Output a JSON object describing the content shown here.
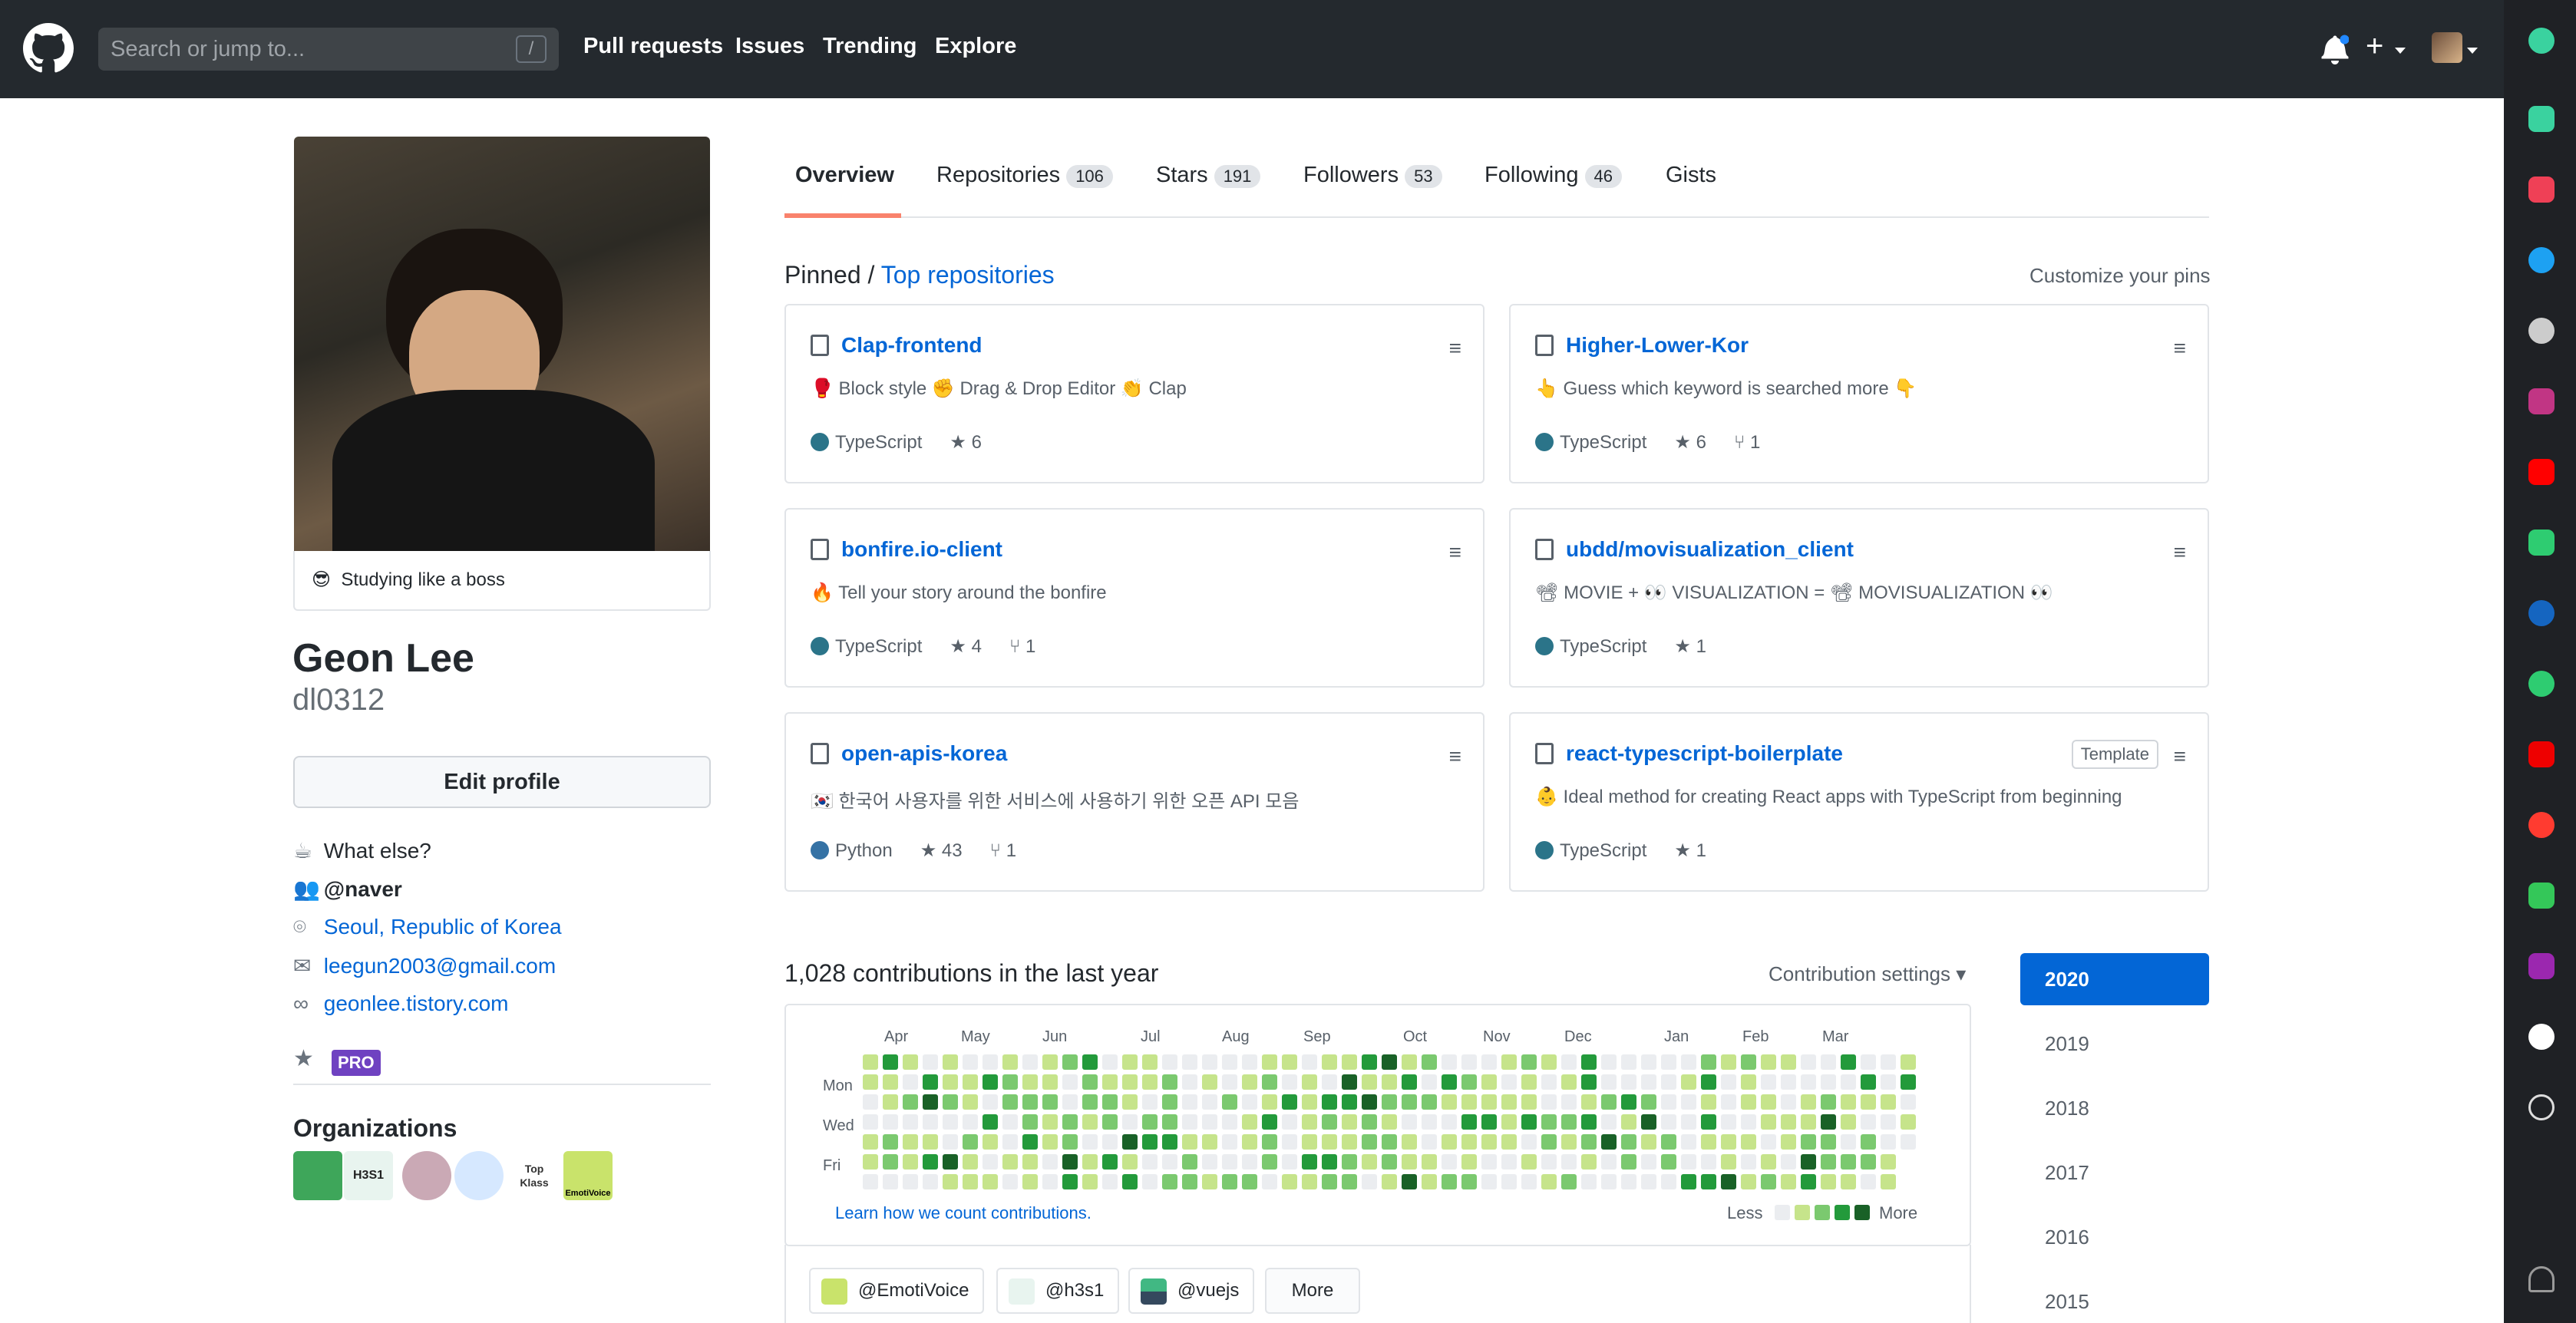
{
  "header": {
    "search_placeholder": "Search or jump to...",
    "slash_hint": "/",
    "nav": [
      "Pull requests",
      "Issues",
      "Trending",
      "Explore"
    ],
    "plus_label": "+"
  },
  "profile": {
    "status_emoji": "😎",
    "status_text": "Studying like a boss",
    "name": "Geon Lee",
    "login": "dl0312",
    "edit_label": "Edit profile",
    "bio_emoji": "☕",
    "bio": "What else?",
    "company": "@naver",
    "location": "Seoul, Republic of Korea",
    "email": "leegun2003@gmail.com",
    "website": "geonlee.tistory.com",
    "pro_badge": "PRO",
    "orgs_heading": "Organizations",
    "orgs": [
      "H3S1",
      "Top Klass",
      "EmotiVoice"
    ]
  },
  "tabs": [
    {
      "label": "Overview",
      "count": ""
    },
    {
      "label": "Repositories",
      "count": "106"
    },
    {
      "label": "Stars",
      "count": "191"
    },
    {
      "label": "Followers",
      "count": "53"
    },
    {
      "label": "Following",
      "count": "46"
    },
    {
      "label": "Gists",
      "count": ""
    }
  ],
  "pinned": {
    "prefix": "Pinned /",
    "link": "Top repositories",
    "customize": "Customize your pins",
    "template_badge": "Template",
    "cards": [
      {
        "name": "Clap-frontend",
        "desc": "🥊 Block style ✊ Drag & Drop Editor 👏 Clap",
        "lang": "TypeScript",
        "stars": "6",
        "forks": ""
      },
      {
        "name": "Higher-Lower-Kor",
        "desc": "👆 Guess which keyword is searched more 👇",
        "lang": "TypeScript",
        "stars": "6",
        "forks": "1"
      },
      {
        "name": "bonfire.io-client",
        "desc": "🔥 Tell your story around the bonfire",
        "lang": "TypeScript",
        "stars": "4",
        "forks": "1"
      },
      {
        "name": "ubdd/movisualization_client",
        "desc": "📽 MOVIE + 👀 VISUALIZATION = 📽 MOVISUALIZATION 👀",
        "lang": "TypeScript",
        "stars": "1",
        "forks": ""
      },
      {
        "name": "open-apis-korea",
        "desc": "🇰🇷 한국어 사용자를 위한 서비스에 사용하기 위한 오픈 API 모음",
        "lang": "Python",
        "stars": "43",
        "forks": "1"
      },
      {
        "name": "react-typescript-boilerplate",
        "desc": "👶 Ideal method for creating React apps with TypeScript from beginning",
        "lang": "TypeScript",
        "stars": "1",
        "forks": ""
      }
    ]
  },
  "contributions": {
    "heading": "1,028 contributions in the last year",
    "settings": "Contribution settings",
    "months": [
      "Apr",
      "May",
      "Jun",
      "Jul",
      "Aug",
      "Sep",
      "Oct",
      "Nov",
      "Dec",
      "Jan",
      "Feb",
      "Mar"
    ],
    "days": [
      "Mon",
      "Wed",
      "Fri"
    ],
    "learn": "Learn how we count contributions.",
    "less": "Less",
    "more": "More",
    "colors": [
      "#ebedf0",
      "#c6e48b",
      "#7bc96f",
      "#239a3b",
      "#196127"
    ]
  },
  "activity": {
    "chips": [
      "@EmotiVoice",
      "@h3s1",
      "@vuejs"
    ],
    "more_label": "More"
  },
  "years": [
    "2020",
    "2019",
    "2018",
    "2017",
    "2016",
    "2015"
  ]
}
